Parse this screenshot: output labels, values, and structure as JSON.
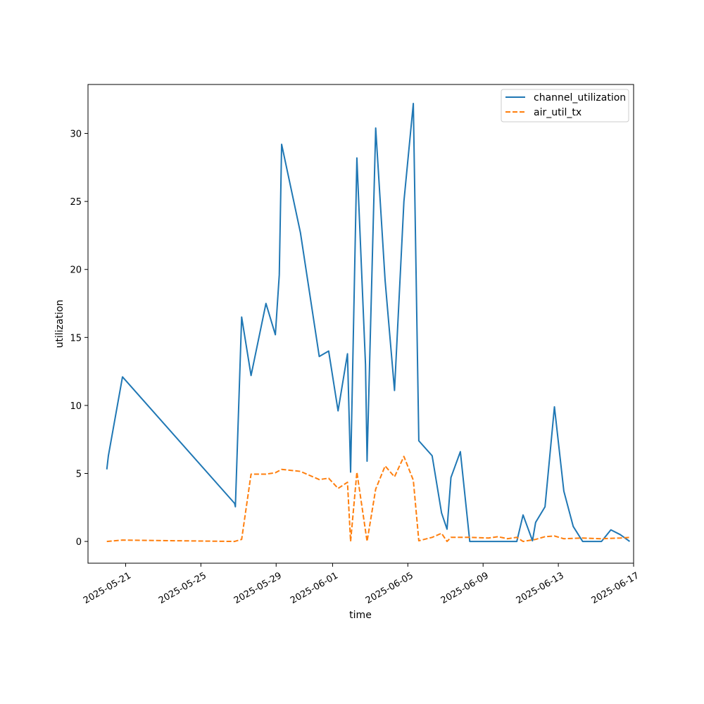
{
  "chart_data": {
    "type": "line",
    "xlabel": "time",
    "ylabel": "utilization",
    "xlim": [
      "2025-05-19",
      "2025-06-17"
    ],
    "ylim": [
      -1.6,
      33.6
    ],
    "x_ticks": [
      "2025-05-21",
      "2025-05-25",
      "2025-05-29",
      "2025-06-01",
      "2025-06-05",
      "2025-06-09",
      "2025-06-13",
      "2025-06-17"
    ],
    "y_ticks": [
      0,
      5,
      10,
      15,
      20,
      25,
      30
    ],
    "legend_position": "top-right",
    "grid": false,
    "series": [
      {
        "name": "channel_utilization",
        "color": "#1f77b4",
        "style": "solid",
        "points": [
          [
            "2025-05-20T00:00",
            5.3
          ],
          [
            "2025-05-20T02:00",
            6.3
          ],
          [
            "2025-05-20T20:00",
            12.1
          ],
          [
            "2025-05-26T19:00",
            2.8
          ],
          [
            "2025-05-26T20:00",
            2.55
          ],
          [
            "2025-05-27T04:00",
            16.5
          ],
          [
            "2025-05-27T16:00",
            12.2
          ],
          [
            "2025-05-28T11:00",
            17.5
          ],
          [
            "2025-05-28T23:00",
            15.2
          ],
          [
            "2025-05-29T04:00",
            19.6
          ],
          [
            "2025-05-29T07:00",
            29.2
          ],
          [
            "2025-05-30T07:00",
            22.7
          ],
          [
            "2025-05-31T07:00",
            13.6
          ],
          [
            "2025-05-31T19:00",
            14.0
          ],
          [
            "2025-06-01T07:00",
            9.6
          ],
          [
            "2025-06-01T19:00",
            13.8
          ],
          [
            "2025-06-01T23:00",
            5.1
          ],
          [
            "2025-06-02T07:00",
            28.2
          ],
          [
            "2025-06-02T18:00",
            13.0
          ],
          [
            "2025-06-02T20:00",
            5.9
          ],
          [
            "2025-06-03T07:00",
            30.4
          ],
          [
            "2025-06-03T19:00",
            19.2
          ],
          [
            "2025-06-04T07:00",
            11.1
          ],
          [
            "2025-06-04T19:00",
            25.0
          ],
          [
            "2025-06-05T07:00",
            32.2
          ],
          [
            "2025-06-05T14:00",
            7.4
          ],
          [
            "2025-06-06T07:00",
            6.3
          ],
          [
            "2025-06-06T19:00",
            2.1
          ],
          [
            "2025-06-07T02:00",
            0.9
          ],
          [
            "2025-06-07T07:00",
            4.7
          ],
          [
            "2025-06-07T19:00",
            6.6
          ],
          [
            "2025-06-08T07:00",
            0.0
          ],
          [
            "2025-06-10T19:00",
            0.0
          ],
          [
            "2025-06-11T03:00",
            1.95
          ],
          [
            "2025-06-11T15:00",
            0.05
          ],
          [
            "2025-06-11T19:00",
            1.4
          ],
          [
            "2025-06-12T07:00",
            2.55
          ],
          [
            "2025-06-12T19:00",
            9.9
          ],
          [
            "2025-06-13T07:00",
            3.7
          ],
          [
            "2025-06-13T19:00",
            1.1
          ],
          [
            "2025-06-14T07:00",
            0.0
          ],
          [
            "2025-06-15T07:00",
            0.0
          ],
          [
            "2025-06-15T19:00",
            0.85
          ],
          [
            "2025-06-16T07:00",
            0.5
          ],
          [
            "2025-06-16T19:00",
            0.0
          ]
        ]
      },
      {
        "name": "air_util_tx",
        "color": "#ff7f0e",
        "style": "dashed",
        "points": [
          [
            "2025-05-20T00:00",
            0.0
          ],
          [
            "2025-05-20T20:00",
            0.1
          ],
          [
            "2025-05-26T19:00",
            0.0
          ],
          [
            "2025-05-27T04:00",
            0.15
          ],
          [
            "2025-05-27T16:00",
            4.95
          ],
          [
            "2025-05-28T11:00",
            4.95
          ],
          [
            "2025-05-28T23:00",
            5.05
          ],
          [
            "2025-05-29T07:00",
            5.3
          ],
          [
            "2025-05-30T07:00",
            5.15
          ],
          [
            "2025-05-31T07:00",
            4.55
          ],
          [
            "2025-05-31T19:00",
            4.65
          ],
          [
            "2025-06-01T07:00",
            3.9
          ],
          [
            "2025-06-01T19:00",
            4.35
          ],
          [
            "2025-06-01T23:00",
            0.0
          ],
          [
            "2025-06-02T07:00",
            5.1
          ],
          [
            "2025-06-02T20:00",
            0.0
          ],
          [
            "2025-06-03T07:00",
            3.85
          ],
          [
            "2025-06-03T19:00",
            5.55
          ],
          [
            "2025-06-04T07:00",
            4.75
          ],
          [
            "2025-06-04T19:00",
            6.25
          ],
          [
            "2025-06-05T07:00",
            4.5
          ],
          [
            "2025-06-05T14:00",
            0.05
          ],
          [
            "2025-06-06T07:00",
            0.3
          ],
          [
            "2025-06-06T19:00",
            0.6
          ],
          [
            "2025-06-07T02:00",
            0.0
          ],
          [
            "2025-06-07T07:00",
            0.3
          ],
          [
            "2025-06-08T07:00",
            0.3
          ],
          [
            "2025-06-09T07:00",
            0.25
          ],
          [
            "2025-06-09T19:00",
            0.35
          ],
          [
            "2025-06-10T07:00",
            0.2
          ],
          [
            "2025-06-10T19:00",
            0.3
          ],
          [
            "2025-06-11T03:00",
            0.0
          ],
          [
            "2025-06-11T19:00",
            0.15
          ],
          [
            "2025-06-12T07:00",
            0.35
          ],
          [
            "2025-06-12T19:00",
            0.4
          ],
          [
            "2025-06-13T07:00",
            0.2
          ],
          [
            "2025-06-14T07:00",
            0.25
          ],
          [
            "2025-06-15T07:00",
            0.2
          ],
          [
            "2025-06-16T07:00",
            0.25
          ],
          [
            "2025-06-16T19:00",
            0.3
          ]
        ]
      }
    ]
  }
}
